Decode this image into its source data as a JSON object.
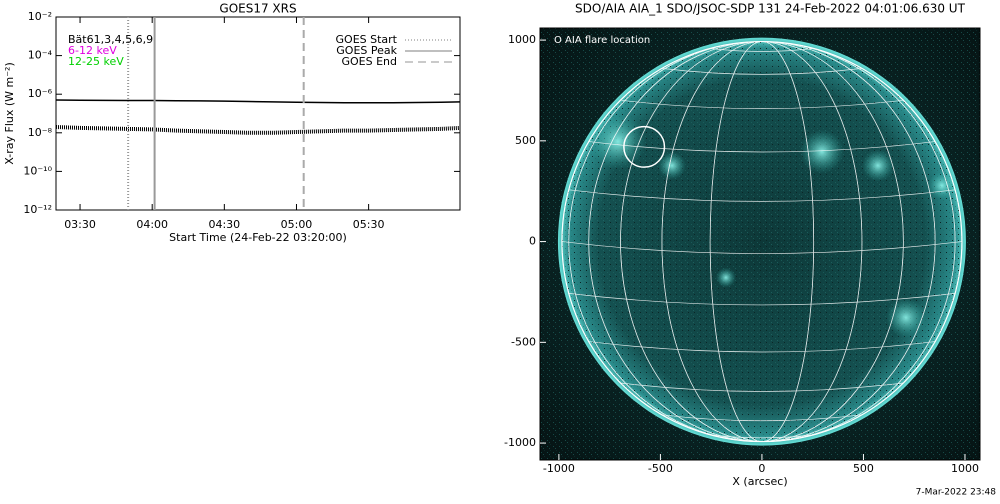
{
  "chart_data": [
    {
      "type": "line",
      "title": "GOES17 XRS",
      "xlabel": "Start Time (24-Feb-22 03:20:00)",
      "ylabel": "X-ray Flux (W m⁻²)",
      "log_y": true,
      "x": [
        "03:20",
        "03:30",
        "03:40",
        "03:50",
        "04:00",
        "04:10",
        "04:20",
        "04:30",
        "04:40",
        "04:50",
        "05:00",
        "05:10",
        "05:20",
        "05:30",
        "05:40",
        "05:50",
        "06:00",
        "06:08"
      ],
      "series": [
        {
          "color": "#000000",
          "style": "solid",
          "values": [
            5e-07,
            4.9e-07,
            4.8e-07,
            4.7e-07,
            4.7e-07,
            4.6e-07,
            4.5e-07,
            4.4e-07,
            4.2e-07,
            4e-07,
            3.8e-07,
            3.7e-07,
            3.6e-07,
            3.6e-07,
            3.6e-07,
            3.7e-07,
            3.8e-07,
            4e-07
          ]
        },
        {
          "color": "#000000",
          "style": "dotted",
          "values": [
            2e-08,
            1.8e-08,
            1.7e-08,
            1.6e-08,
            1.5e-08,
            1.3e-08,
            1.2e-08,
            1.1e-08,
            1e-08,
            1e-08,
            1.1e-08,
            1.2e-08,
            1.3e-08,
            1.3e-08,
            1.4e-08,
            1.5e-08,
            1.6e-08,
            1.8e-08
          ]
        }
      ],
      "annotations": [
        {
          "text": "Bät61,3,4,5,6,9",
          "color": "#000000"
        },
        {
          "text": "6-12 keV",
          "color": "#e000e0"
        },
        {
          "text": "12-25 keV",
          "color": "#00d000"
        }
      ],
      "events": [
        {
          "label": "GOES Start",
          "x": "03:50",
          "style": "dotted",
          "color": "#999999"
        },
        {
          "label": "GOES Peak",
          "x": "04:01",
          "style": "solid",
          "color": "#999999"
        },
        {
          "label": "GOES End",
          "x": "05:03",
          "style": "dashed",
          "color": "#aaaaaa"
        }
      ],
      "xlim": [
        "03:20",
        "06:08"
      ],
      "xticks": [
        "03:30",
        "04:00",
        "04:30",
        "05:00",
        "05:30"
      ],
      "ylim": [
        1e-12,
        0.01
      ],
      "yticks": [
        {
          "value": 1e-12,
          "label": "10⁻¹²"
        },
        {
          "value": 1e-10,
          "label": "10⁻¹⁰"
        },
        {
          "value": 1e-08,
          "label": "10⁻⁸"
        },
        {
          "value": 1e-06,
          "label": "10⁻⁶"
        },
        {
          "value": 0.0001,
          "label": "10⁻⁴"
        },
        {
          "value": 0.01,
          "label": "10⁻²"
        }
      ]
    },
    {
      "type": "image",
      "title": "SDO/AIA AIA_1 SDO/JSOC-SDP 131 24-Feb-2022 04:01:06.630 UT",
      "xlabel": "X (arcsec)",
      "annotation": "O AIA flare location",
      "flare": {
        "x": -580,
        "y": 470,
        "r": 100
      },
      "solar_radius": 985,
      "xlim": [
        -1093,
        1074
      ],
      "ylim": [
        -1084,
        1060
      ],
      "xticks": [
        -1000,
        -500,
        0,
        500,
        1000
      ],
      "yticks": [
        -1000,
        -500,
        0,
        500,
        1000
      ]
    }
  ],
  "footer": "7-Mar-2022 23:48"
}
